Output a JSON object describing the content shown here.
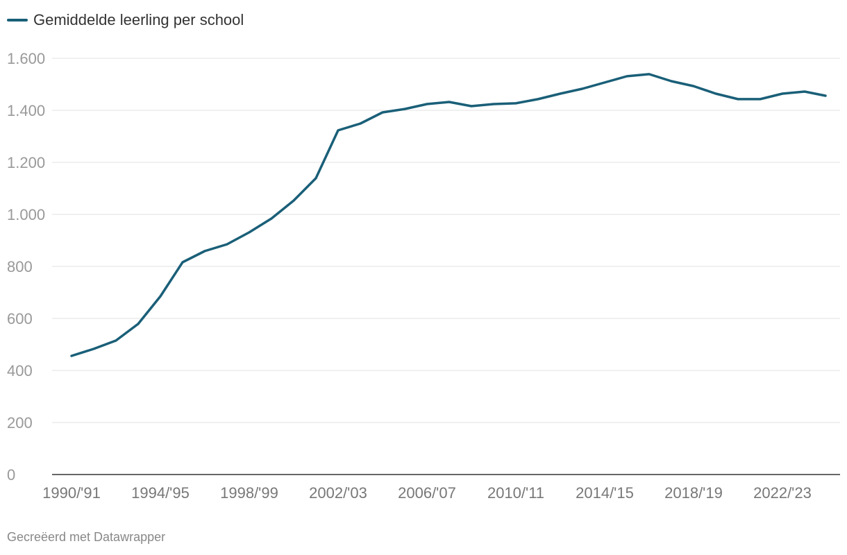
{
  "chart_data": {
    "type": "line",
    "title": "",
    "xlabel": "",
    "ylabel": "",
    "ylim": [
      0,
      1600
    ],
    "yticks": [
      0,
      200,
      400,
      600,
      800,
      1000,
      1200,
      1400,
      1600
    ],
    "ytick_labels": [
      "0",
      "200",
      "400",
      "600",
      "800",
      "1.000",
      "1.200",
      "1.400",
      "1.600"
    ],
    "x": [
      "1990/'91",
      "1991/'92",
      "1992/'93",
      "1993/'94",
      "1994/'95",
      "1995/'96",
      "1996/'97",
      "1997/'98",
      "1998/'99",
      "1999/'00",
      "2000/'01",
      "2001/'02",
      "2002/'03",
      "2003/'04",
      "2004/'05",
      "2005/'06",
      "2006/'07",
      "2007/'08",
      "2008/'09",
      "2009/'10",
      "2010/'11",
      "2011/'12",
      "2012/'13",
      "2013/'14",
      "2014/'15",
      "2015/'16",
      "2016/'17",
      "2017/'18",
      "2018/'19",
      "2019/'20",
      "2020/'21",
      "2021/'22",
      "2022/'23",
      "2023/'24",
      "2024/'25"
    ],
    "xtick_labels": [
      "1990/'91",
      "1994/'95",
      "1998/'99",
      "2002/'03",
      "2006/'07",
      "2010/'11",
      "2014/'15",
      "2018/'19",
      "2022/'23"
    ],
    "series": [
      {
        "name": "Gemiddelde leerling per school",
        "color": "#1a5f78",
        "values": [
          456,
          483,
          515,
          579,
          685,
          816,
          859,
          885,
          931,
          984,
          1053,
          1139,
          1323,
          1349,
          1392,
          1405,
          1424,
          1432,
          1416,
          1424,
          1427,
          1443,
          1464,
          1483,
          1507,
          1531,
          1539,
          1512,
          1493,
          1464,
          1443,
          1443,
          1464,
          1472,
          1456
        ]
      }
    ],
    "grid": true,
    "legend_position": "top-left"
  },
  "footer": "Gecreëerd met Datawrapper"
}
